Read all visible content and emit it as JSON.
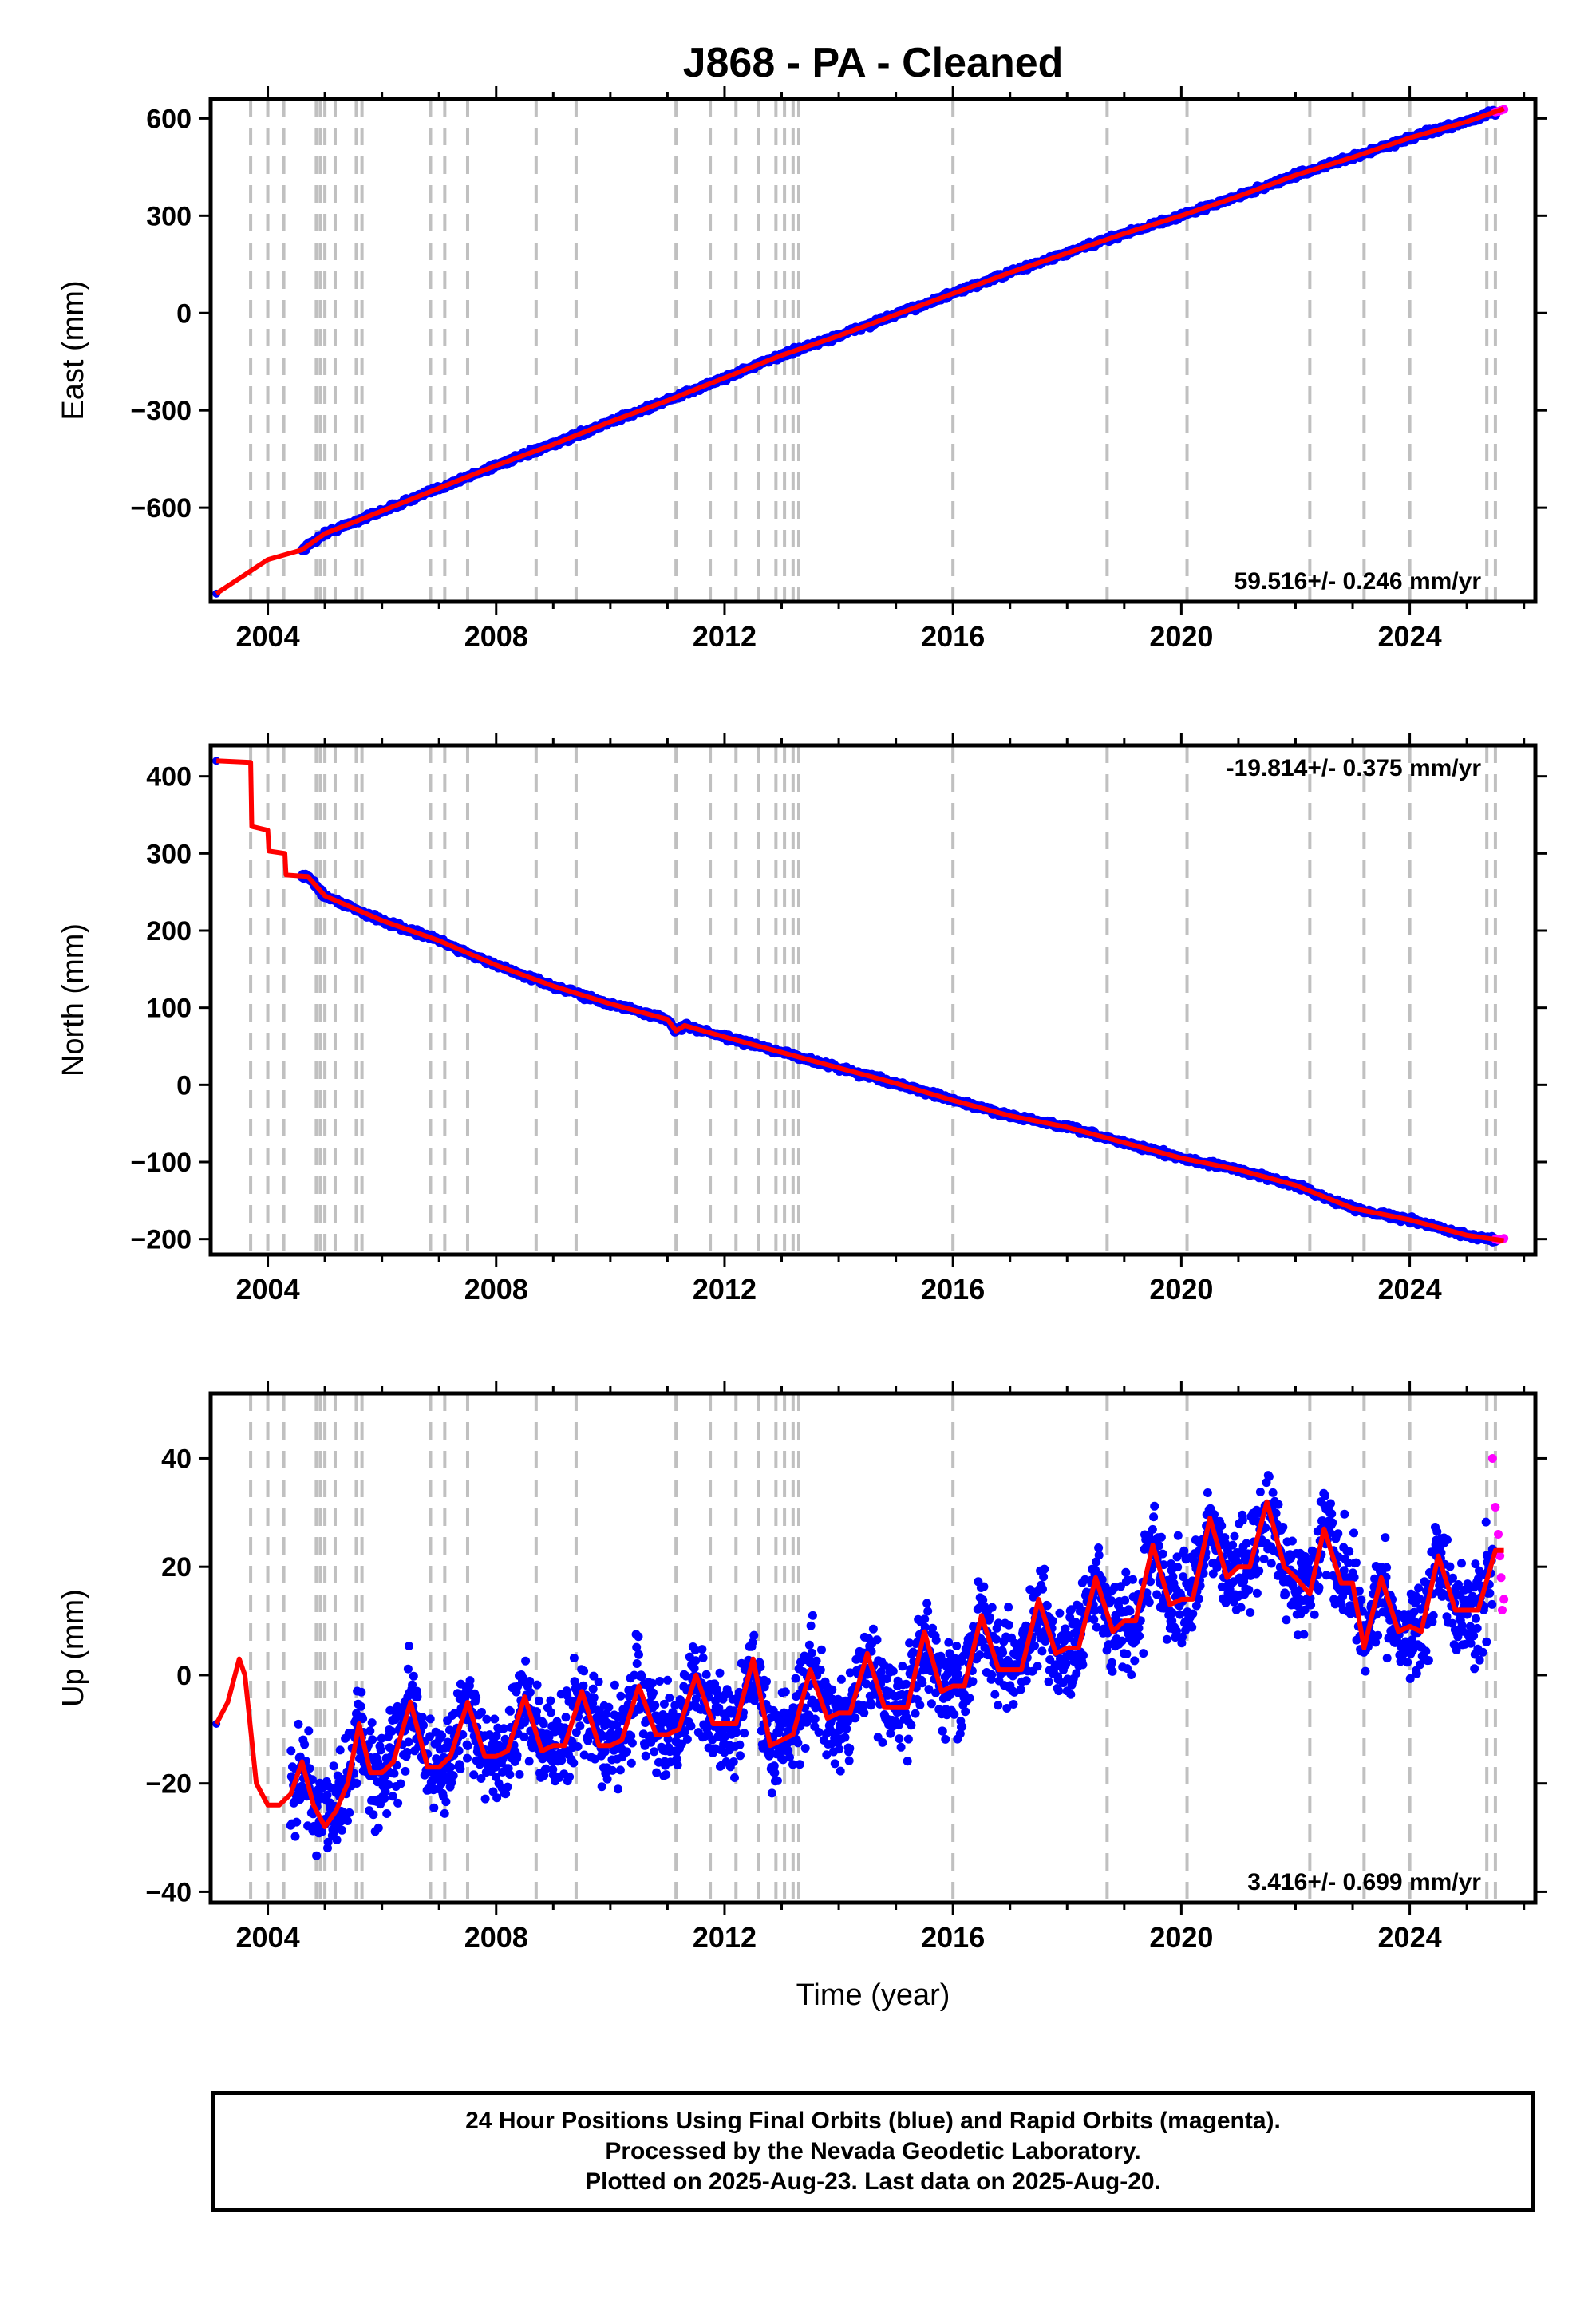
{
  "title": "J868  - PA - Cleaned",
  "xlabel": "Time (year)",
  "xlim": [
    2003.0,
    2026.2
  ],
  "xticks": [
    2004,
    2008,
    2012,
    2016,
    2020,
    2024
  ],
  "equipment_changes": [
    2003.7,
    2004.0,
    2004.28,
    2004.85,
    2004.92,
    2005.0,
    2005.18,
    2005.55,
    2005.65,
    2006.85,
    2007.1,
    2007.5,
    2008.7,
    2009.4,
    2011.15,
    2011.75,
    2012.2,
    2012.6,
    2012.9,
    2013.05,
    2013.2,
    2013.3,
    2016.0,
    2018.7,
    2020.1,
    2022.25,
    2023.2,
    2024.0,
    2025.35,
    2025.5
  ],
  "colors": {
    "final": "#0000ff",
    "rapid": "#ff00ff",
    "model": "#ff0000",
    "breaks": "#c0c0c0"
  },
  "chart_data": [
    {
      "type": "scatter",
      "ylabel": "East (mm)",
      "ylim": [
        -890,
        660
      ],
      "yticks": [
        -600,
        -300,
        0,
        300,
        600
      ],
      "rate_label": "59.516+/- 0.246 mm/yr",
      "rate_position": "bottom-right",
      "x": [
        2003.1,
        2004.0,
        2004.6,
        2005.0,
        2006.0,
        2007.0,
        2008.0,
        2009.0,
        2010.0,
        2011.0,
        2012.0,
        2013.0,
        2014.0,
        2015.0,
        2016.0,
        2017.0,
        2018.0,
        2019.0,
        2020.0,
        2021.0,
        2022.0,
        2023.0,
        2024.0,
        2025.0,
        2025.65
      ],
      "model": [
        -865,
        -760,
        -730,
        -680,
        -610,
        -540,
        -470,
        -405,
        -335,
        -270,
        -200,
        -130,
        -70,
        -5,
        60,
        125,
        185,
        245,
        300,
        360,
        425,
        480,
        540,
        590,
        630
      ],
      "final_start": 2004.6,
      "rapid_x": [
        2025.5,
        2025.55,
        2025.6,
        2025.65
      ],
      "rapid_y": [
        620,
        622,
        625,
        628
      ]
    },
    {
      "type": "scatter",
      "ylabel": "North (mm)",
      "ylim": [
        -220,
        440
      ],
      "yticks": [
        -200,
        -100,
        0,
        100,
        200,
        300,
        400
      ],
      "rate_label": "-19.814+/- 0.375 mm/yr",
      "rate_position": "top-right",
      "x": [
        2003.1,
        2003.7,
        2003.72,
        2004.0,
        2004.02,
        2004.3,
        2004.32,
        2004.7,
        2005.0,
        2006.0,
        2007.0,
        2008.0,
        2009.0,
        2010.0,
        2011.0,
        2011.15,
        2011.3,
        2012.0,
        2013.0,
        2014.0,
        2015.0,
        2016.0,
        2017.0,
        2018.0,
        2019.0,
        2020.0,
        2021.0,
        2022.0,
        2023.0,
        2024.0,
        2025.0,
        2025.65
      ],
      "model": [
        420,
        418,
        335,
        330,
        303,
        300,
        272,
        270,
        245,
        213,
        187,
        155,
        128,
        105,
        85,
        70,
        77,
        62,
        42,
        22,
        2,
        -20,
        -40,
        -55,
        -75,
        -95,
        -110,
        -130,
        -160,
        -175,
        -195,
        -202
      ],
      "final_start": 2004.6,
      "rapid_x": [
        2025.5,
        2025.55,
        2025.6,
        2025.65
      ],
      "rapid_y": [
        -200,
        -201,
        -200,
        -199
      ]
    },
    {
      "type": "scatter",
      "ylabel": "Up (mm)",
      "ylim": [
        -42,
        52
      ],
      "yticks": [
        -40,
        -20,
        0,
        20,
        40
      ],
      "rate_label": "3.416+/- 0.699 mm/yr",
      "rate_position": "bottom-right",
      "x": [
        2003.1,
        2003.3,
        2003.5,
        2003.6,
        2003.8,
        2004.0,
        2004.2,
        2004.4,
        2004.6,
        2004.8,
        2005.0,
        2005.2,
        2005.4,
        2005.6,
        2005.8,
        2006.0,
        2006.2,
        2006.5,
        2006.8,
        2007.0,
        2007.2,
        2007.5,
        2007.8,
        2008.0,
        2008.2,
        2008.5,
        2008.8,
        2009.0,
        2009.2,
        2009.5,
        2009.8,
        2010.0,
        2010.2,
        2010.5,
        2010.8,
        2011.0,
        2011.2,
        2011.5,
        2011.8,
        2012.0,
        2012.2,
        2012.5,
        2012.8,
        2013.0,
        2013.2,
        2013.5,
        2013.8,
        2014.0,
        2014.2,
        2014.5,
        2014.8,
        2015.0,
        2015.2,
        2015.5,
        2015.8,
        2016.0,
        2016.2,
        2016.5,
        2016.8,
        2017.0,
        2017.2,
        2017.5,
        2017.8,
        2018.0,
        2018.2,
        2018.5,
        2018.8,
        2019.0,
        2019.2,
        2019.5,
        2019.8,
        2020.0,
        2020.2,
        2020.5,
        2020.8,
        2021.0,
        2021.2,
        2021.5,
        2021.8,
        2022.0,
        2022.25,
        2022.5,
        2022.8,
        2023.0,
        2023.2,
        2023.5,
        2023.8,
        2024.0,
        2024.2,
        2024.5,
        2024.8,
        2025.0,
        2025.2,
        2025.5,
        2025.65
      ],
      "model": [
        -9,
        -5,
        3,
        0,
        -20,
        -24,
        -24,
        -22,
        -16,
        -24,
        -28,
        -25,
        -20,
        -9,
        -18,
        -18,
        -16,
        -5,
        -17,
        -17,
        -15,
        -5,
        -15,
        -15,
        -14,
        -4,
        -14,
        -13,
        -13,
        -3,
        -13,
        -13,
        -12,
        -2,
        -11,
        -11,
        -10,
        0,
        -9,
        -9,
        -9,
        3,
        -13,
        -12,
        -11,
        1,
        -8,
        -7,
        -7,
        4,
        -6,
        -6,
        -6,
        8,
        -3,
        -2,
        -2,
        11,
        1,
        1,
        1,
        14,
        4,
        5,
        5,
        18,
        8,
        10,
        10,
        24,
        13,
        14,
        14,
        29,
        18,
        20,
        20,
        32,
        20,
        18,
        15,
        27,
        17,
        17,
        5,
        18,
        8,
        9,
        8,
        22,
        12,
        12,
        12,
        23,
        23
      ],
      "noise": 6,
      "final_start": 2004.4,
      "rapid_x": [
        2025.45,
        2025.5,
        2025.55,
        2025.6,
        2025.65,
        2025.58,
        2025.62
      ],
      "rapid_y": [
        40,
        31,
        26,
        18,
        14,
        22,
        12
      ]
    }
  ],
  "footer": {
    "line1": "24 Hour Positions Using Final Orbits (blue) and Rapid Orbits (magenta).",
    "line2": "Processed by the Nevada Geodetic Laboratory.",
    "line3": "Plotted on 2025-Aug-23. Last data on 2025-Aug-20."
  }
}
